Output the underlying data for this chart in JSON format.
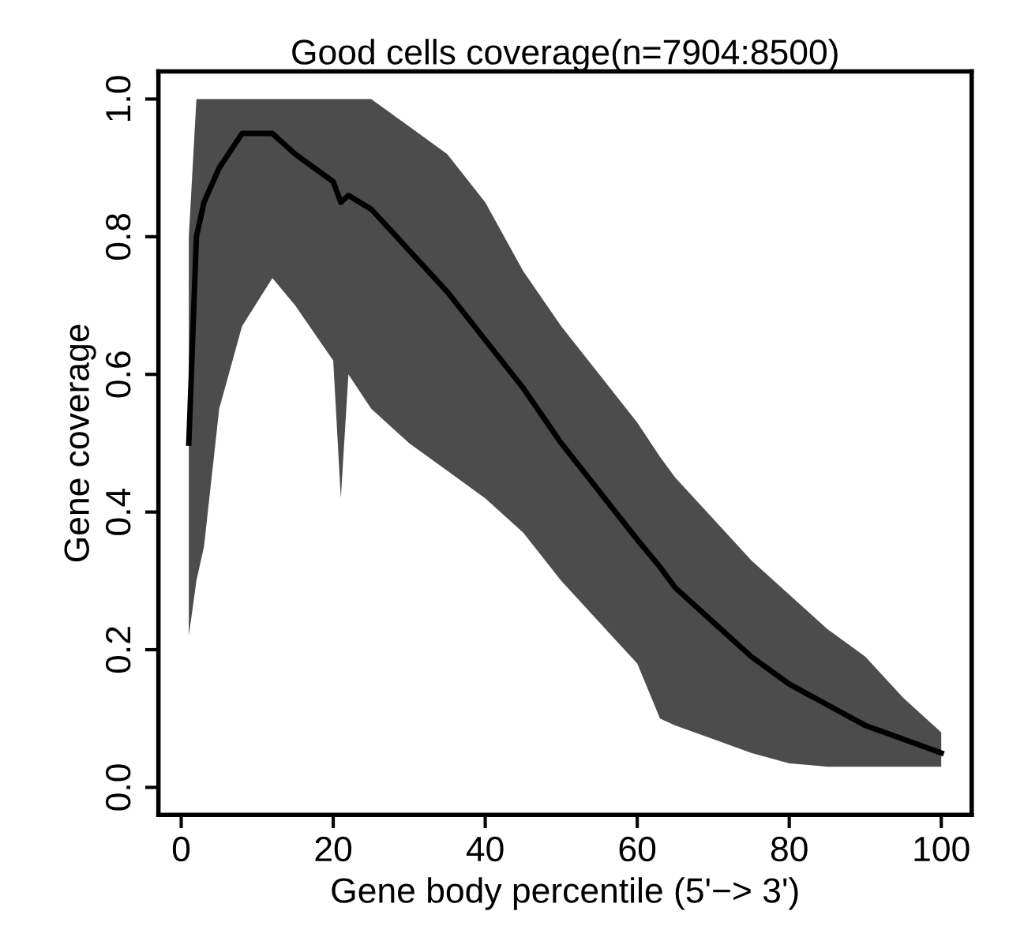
{
  "chart_data": {
    "type": "line",
    "title": "Good cells coverage(n=7904:8500)",
    "xlabel": "Gene body percentile (5'−> 3')",
    "ylabel": "Gene coverage",
    "x": [
      1,
      2,
      3,
      5,
      8,
      12,
      15,
      20,
      21,
      22,
      25,
      30,
      35,
      40,
      45,
      50,
      55,
      60,
      63,
      65,
      70,
      75,
      80,
      85,
      90,
      95,
      100
    ],
    "series": [
      {
        "color": "#000000",
        "values": [
          0.5,
          0.8,
          0.85,
          0.9,
          0.95,
          0.95,
          0.92,
          0.88,
          0.85,
          0.86,
          0.84,
          0.78,
          0.72,
          0.65,
          0.58,
          0.5,
          0.43,
          0.36,
          0.32,
          0.29,
          0.24,
          0.19,
          0.15,
          0.12,
          0.09,
          0.07,
          0.05
        ],
        "lower": [
          0.22,
          0.3,
          0.35,
          0.55,
          0.67,
          0.74,
          0.7,
          0.62,
          0.42,
          0.6,
          0.55,
          0.5,
          0.46,
          0.42,
          0.37,
          0.3,
          0.24,
          0.18,
          0.1,
          0.09,
          0.07,
          0.05,
          0.035,
          0.03,
          0.03,
          0.03,
          0.03
        ],
        "upper": [
          0.8,
          1.0,
          1.0,
          1.0,
          1.0,
          1.0,
          1.0,
          1.0,
          1.0,
          1.0,
          1.0,
          0.96,
          0.92,
          0.85,
          0.75,
          0.67,
          0.6,
          0.53,
          0.48,
          0.45,
          0.39,
          0.33,
          0.28,
          0.23,
          0.19,
          0.13,
          0.08
        ]
      }
    ],
    "xlim": [
      -3,
      104
    ],
    "ylim": [
      -0.04,
      1.04
    ],
    "xticks": [
      0,
      20,
      40,
      60,
      80,
      100
    ],
    "yticks": [
      {
        "value": 0,
        "label": "0.0"
      },
      {
        "value": 0.2,
        "label": "0.2"
      },
      {
        "value": 0.4,
        "label": "0.4"
      },
      {
        "value": 0.6,
        "label": "0.6"
      },
      {
        "value": 0.8,
        "label": "0.8"
      },
      {
        "value": 1,
        "label": "1.0"
      }
    ],
    "grid": false,
    "marker": "none",
    "line_style": "solid"
  }
}
